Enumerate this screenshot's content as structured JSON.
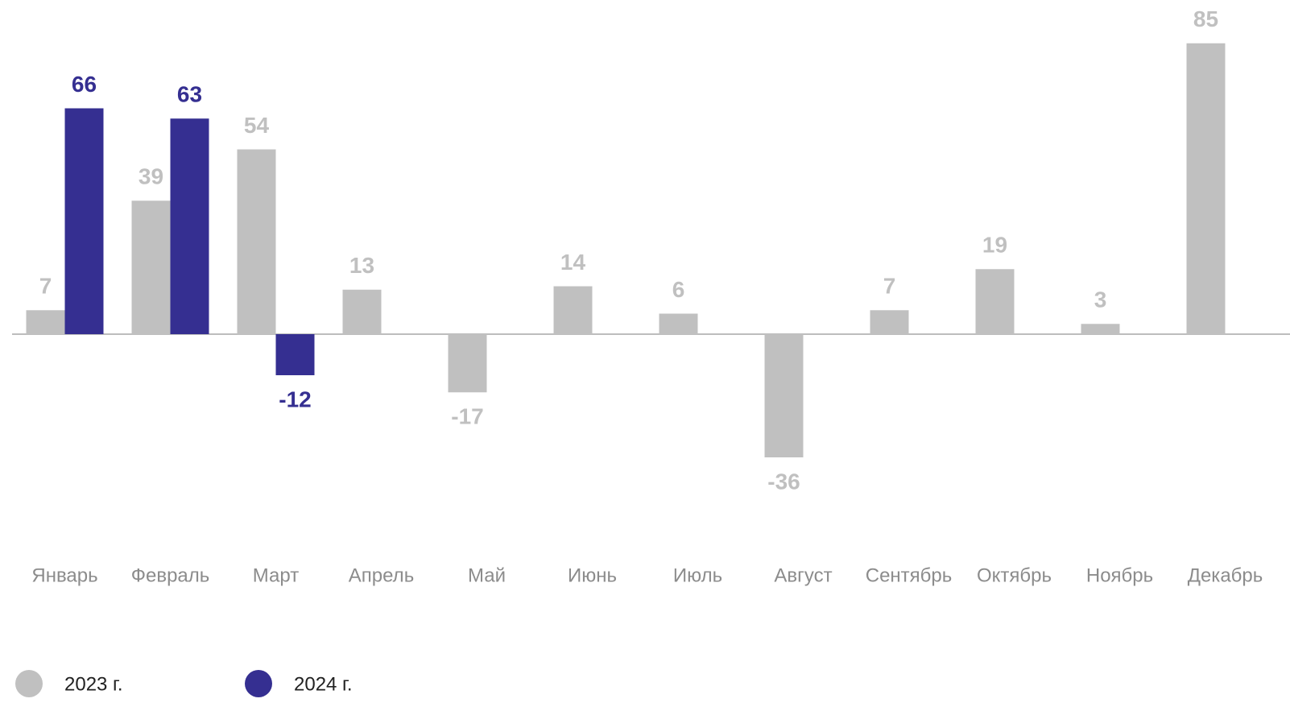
{
  "chart_data": {
    "type": "bar",
    "categories": [
      "Январь",
      "Февраль",
      "Март",
      "Апрель",
      "Май",
      "Июнь",
      "Июль",
      "Август",
      "Сентябрь",
      "Октябрь",
      "Ноябрь",
      "Декабрь"
    ],
    "series": [
      {
        "name": "2023 г.",
        "color": "#c0c0c0",
        "values": [
          7,
          39,
          54,
          13,
          -17,
          14,
          6,
          -36,
          7,
          19,
          3,
          85
        ]
      },
      {
        "name": "2024 г.",
        "color": "#352f91",
        "values": [
          66,
          63,
          -12,
          null,
          null,
          null,
          null,
          null,
          null,
          null,
          null,
          null
        ]
      }
    ]
  }
}
